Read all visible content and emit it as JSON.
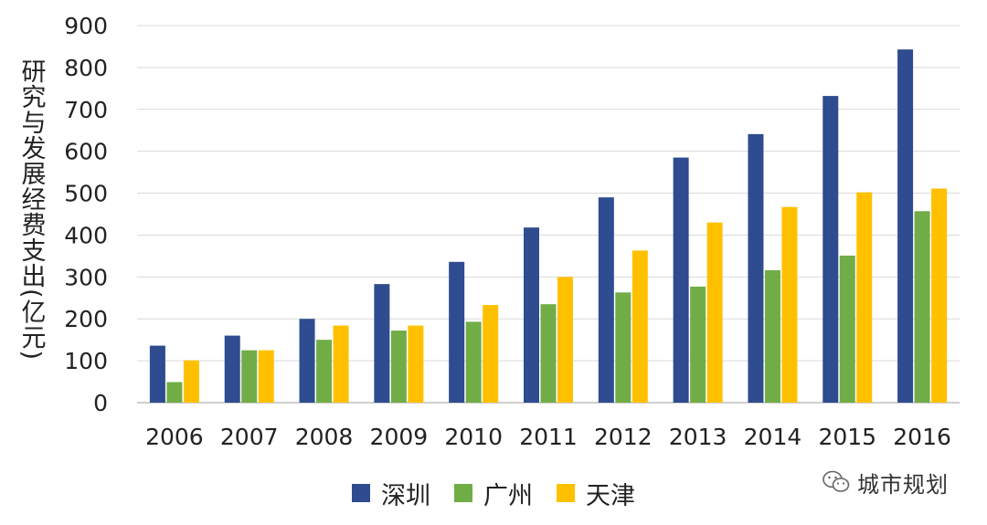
{
  "chart_data": {
    "type": "bar",
    "title": "",
    "xlabel": "",
    "ylabel": "研究与发展经费支出(亿元)",
    "ylim": [
      0,
      900
    ],
    "yticks": [
      0,
      100,
      200,
      300,
      400,
      500,
      600,
      700,
      800,
      900
    ],
    "grid": true,
    "legend_position": "bottom",
    "categories": [
      "2006",
      "2007",
      "2008",
      "2009",
      "2010",
      "2011",
      "2012",
      "2013",
      "2014",
      "2015",
      "2016"
    ],
    "series": [
      {
        "name": "深圳",
        "color": "#2E4C8F",
        "values": [
          136,
          160,
          200,
          283,
          336,
          418,
          490,
          585,
          641,
          732,
          843
        ]
      },
      {
        "name": "广州",
        "color": "#70AD47",
        "values": [
          49,
          125,
          150,
          172,
          193,
          235,
          263,
          277,
          316,
          351,
          457
        ]
      },
      {
        "name": "天津",
        "color": "#FFC000",
        "values": [
          101,
          125,
          184,
          184,
          233,
          300,
          363,
          430,
          467,
          502,
          511
        ]
      }
    ]
  },
  "watermark": {
    "text": "城市规划",
    "icon": "wechat-icon"
  }
}
